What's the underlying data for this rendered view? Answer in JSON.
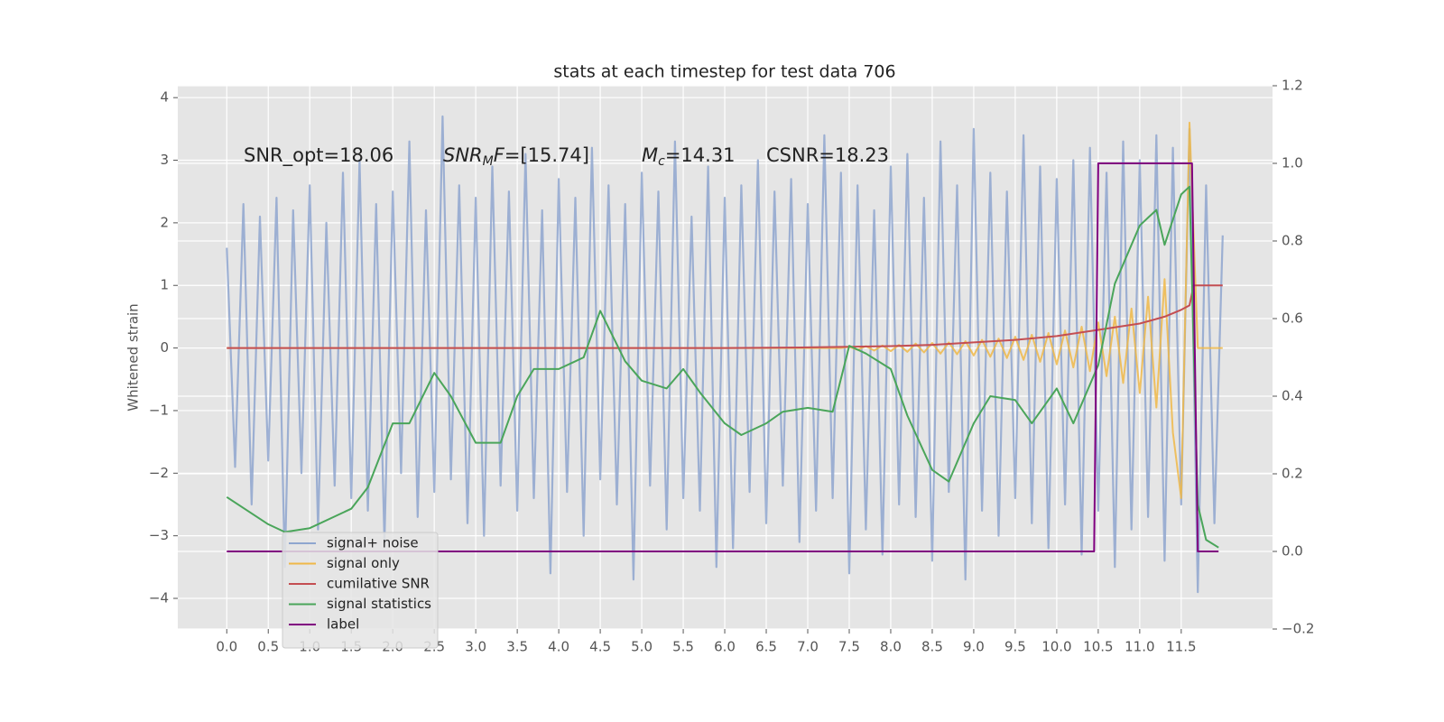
{
  "chart_data": {
    "type": "line",
    "title": "stats at each timestep for test data 706",
    "ylabel": "Whitened strain",
    "annotations": [
      {
        "text": "SNR_opt=18.06"
      },
      {
        "text": "SNR",
        "sub": "M",
        "italic": "F",
        "rest": "=[15.74]",
        "math": true
      },
      {
        "text": "M",
        "sub": "c",
        "rest": "=14.31",
        "math": true
      },
      {
        "text": "CSNR=18.23"
      }
    ],
    "xlim": [
      -0.59,
      12.6
    ],
    "xticks": [
      {
        "value": 0,
        "label": "0.0"
      },
      0.5,
      {
        "value": 1,
        "label": "1.0"
      },
      1.5,
      {
        "value": 2,
        "label": "2.0"
      },
      2.5,
      {
        "value": 3,
        "label": "3.0"
      },
      3.5,
      {
        "value": 4,
        "label": "4.0"
      },
      4.5,
      {
        "value": 5,
        "label": "5.0"
      },
      5.5,
      {
        "value": 6,
        "label": "6.0"
      },
      6.5,
      {
        "value": 7,
        "label": "7.0"
      },
      7.5,
      {
        "value": 8,
        "label": "8.0"
      },
      8.5,
      {
        "value": 9,
        "label": "9.0"
      },
      9.5,
      {
        "value": 10,
        "label": "10.0"
      },
      10.5,
      {
        "value": 11,
        "label": "11.0"
      },
      11.5
    ],
    "ylim": [
      -4.49,
      4.19
    ],
    "yticks": [
      {
        "value": -4,
        "label": "−4"
      },
      {
        "value": -3,
        "label": "−3"
      },
      {
        "value": -2,
        "label": "−2"
      },
      {
        "value": -1,
        "label": "−1"
      },
      0,
      1,
      2,
      3,
      4
    ],
    "y2lim": [
      -0.2,
      1.2
    ],
    "y2ticks": [
      {
        "value": -0.2,
        "label": "−0.2"
      },
      {
        "value": 0,
        "label": "0.0"
      },
      0.2,
      0.4,
      0.6,
      0.8,
      {
        "value": 1,
        "label": "1.0"
      },
      1.2
    ],
    "grid": true,
    "legend": "lower left",
    "series": [
      {
        "name": "signal+ noise",
        "color": "#8fa6cf",
        "x": [
          0.0,
          0.1,
          0.2,
          0.3,
          0.4,
          0.5,
          0.6,
          0.7,
          0.8,
          0.9,
          1.0,
          1.1,
          1.2,
          1.3,
          1.4,
          1.5,
          1.6,
          1.7,
          1.8,
          1.9,
          2.0,
          2.1,
          2.2,
          2.3,
          2.4,
          2.5,
          2.6,
          2.7,
          2.8,
          2.9,
          3.0,
          3.1,
          3.2,
          3.3,
          3.4,
          3.5,
          3.6,
          3.7,
          3.8,
          3.9,
          4.0,
          4.1,
          4.2,
          4.3,
          4.4,
          4.5,
          4.6,
          4.7,
          4.8,
          4.9,
          5.0,
          5.1,
          5.2,
          5.3,
          5.4,
          5.5,
          5.6,
          5.7,
          5.8,
          5.9,
          6.0,
          6.1,
          6.2,
          6.3,
          6.4,
          6.5,
          6.6,
          6.7,
          6.8,
          6.9,
          7.0,
          7.1,
          7.2,
          7.3,
          7.4,
          7.5,
          7.6,
          7.7,
          7.8,
          7.9,
          8.0,
          8.1,
          8.2,
          8.3,
          8.4,
          8.5,
          8.6,
          8.7,
          8.8,
          8.9,
          9.0,
          9.1,
          9.2,
          9.3,
          9.4,
          9.5,
          9.6,
          9.7,
          9.8,
          9.9,
          10.0,
          10.1,
          10.2,
          10.3,
          10.4,
          10.5,
          10.6,
          10.7,
          10.8,
          10.9,
          11.0,
          11.1,
          11.2,
          11.3,
          11.4,
          11.5,
          11.6,
          11.7,
          11.8,
          11.9,
          12.0
        ],
        "values": [
          1.6,
          -1.9,
          2.3,
          -2.5,
          2.1,
          -1.8,
          2.4,
          -3.5,
          2.2,
          -2.0,
          2.6,
          -2.9,
          2.0,
          -2.2,
          2.8,
          -2.4,
          3.0,
          -2.6,
          2.3,
          -3.1,
          2.5,
          -2.0,
          3.3,
          -2.7,
          2.2,
          -2.3,
          3.7,
          -2.1,
          2.6,
          -2.8,
          2.4,
          -3.0,
          2.9,
          -2.2,
          2.5,
          -2.6,
          3.1,
          -2.4,
          2.2,
          -3.6,
          2.7,
          -2.3,
          2.4,
          -3.0,
          3.2,
          -2.1,
          2.6,
          -2.5,
          2.3,
          -3.7,
          2.8,
          -2.2,
          2.5,
          -2.9,
          3.3,
          -2.4,
          2.1,
          -2.6,
          2.9,
          -3.5,
          2.4,
          -3.2,
          2.6,
          -2.3,
          3.0,
          -2.8,
          2.5,
          -2.2,
          2.7,
          -3.1,
          2.3,
          -2.6,
          3.4,
          -2.4,
          2.8,
          -3.6,
          2.6,
          -2.9,
          2.2,
          -3.3,
          2.9,
          -2.5,
          3.1,
          -2.7,
          2.4,
          -3.4,
          3.3,
          -2.3,
          2.6,
          -3.7,
          3.5,
          -2.6,
          2.8,
          -3.0,
          2.5,
          -2.4,
          3.4,
          -2.8,
          2.9,
          -3.2,
          2.7,
          -2.5,
          3.0,
          -3.3,
          3.2,
          -2.6,
          2.8,
          -3.5,
          3.3,
          -2.9,
          3.0,
          -2.7,
          3.4,
          -3.4,
          3.2,
          -2.5,
          3.5,
          -3.9,
          2.6,
          -2.8,
          1.8
        ]
      },
      {
        "name": "signal only",
        "color": "#f0b848",
        "x": [
          0.0,
          0.1,
          0.2,
          0.3,
          0.4,
          0.5,
          0.6,
          0.7,
          0.8,
          0.9,
          1.0,
          1.1,
          1.2,
          1.3,
          1.4,
          1.5,
          1.6,
          1.7,
          1.8,
          1.9,
          2.0,
          2.1,
          2.2,
          2.3,
          2.4,
          2.5,
          2.6,
          2.7,
          2.8,
          2.9,
          3.0,
          3.1,
          3.2,
          3.3,
          3.4,
          3.5,
          3.6,
          3.7,
          3.8,
          3.9,
          4.0,
          4.1,
          4.2,
          4.3,
          4.4,
          4.5,
          4.6,
          4.7,
          4.8,
          4.9,
          5.0,
          5.1,
          5.2,
          5.3,
          5.4,
          5.5,
          5.6,
          5.7,
          5.8,
          5.9,
          6.0,
          6.1,
          6.2,
          6.3,
          6.4,
          6.5,
          6.6,
          6.7,
          6.8,
          6.9,
          7.0,
          7.1,
          7.2,
          7.3,
          7.4,
          7.5,
          7.6,
          7.7,
          7.8,
          7.9,
          8.0,
          8.1,
          8.2,
          8.3,
          8.4,
          8.5,
          8.6,
          8.7,
          8.8,
          8.9,
          9.0,
          9.1,
          9.2,
          9.3,
          9.4,
          9.5,
          9.6,
          9.7,
          9.8,
          9.9,
          10.0,
          10.1,
          10.2,
          10.3,
          10.4,
          10.5,
          10.6,
          10.7,
          10.8,
          10.9,
          11.0,
          11.1,
          11.2,
          11.3,
          11.4,
          11.5,
          11.6,
          11.7,
          11.8,
          11.9,
          12.0
        ],
        "values": [
          0,
          0,
          0,
          0,
          0,
          0,
          0,
          0,
          0,
          0,
          0,
          0,
          0,
          0,
          0,
          0,
          0,
          0,
          0,
          0,
          0,
          0,
          0,
          0,
          0,
          0,
          0,
          0,
          0,
          0,
          0,
          0,
          0,
          0,
          0,
          0,
          0,
          0,
          0,
          0,
          0,
          0,
          0,
          0,
          0,
          0,
          0,
          0,
          0,
          0,
          0,
          0,
          0,
          0,
          0,
          0,
          0,
          0,
          0,
          0,
          0,
          0,
          0,
          0,
          0,
          0,
          0,
          0,
          0,
          0,
          0,
          0,
          0,
          0,
          0,
          0.02,
          -0.03,
          0.03,
          -0.04,
          0.04,
          -0.05,
          0.05,
          -0.06,
          0.07,
          -0.07,
          0.08,
          -0.09,
          0.09,
          -0.1,
          0.11,
          -0.12,
          0.13,
          -0.14,
          0.15,
          -0.16,
          0.18,
          -0.19,
          0.21,
          -0.22,
          0.24,
          -0.26,
          0.28,
          -0.31,
          0.34,
          -0.37,
          0.41,
          -0.45,
          0.5,
          -0.56,
          0.63,
          -0.72,
          0.82,
          -0.95,
          1.1,
          -1.35,
          -2.4,
          3.6,
          0,
          0,
          0,
          0
        ]
      },
      {
        "name": "cumilative SNR",
        "color": "#c44e52",
        "x": [
          0,
          6,
          7,
          7.5,
          8,
          8.5,
          9,
          9.5,
          10,
          10.5,
          11,
          11.3,
          11.5,
          11.6,
          11.65,
          12.0
        ],
        "values": [
          0,
          0,
          0.01,
          0.02,
          0.03,
          0.05,
          0.09,
          0.13,
          0.19,
          0.29,
          0.39,
          0.5,
          0.61,
          0.68,
          1.0,
          1.0
        ]
      },
      {
        "name": "signal statistics",
        "color": "#4aa55a",
        "axis": "y2",
        "x": [
          0,
          0.5,
          0.7,
          1.0,
          1.5,
          1.7,
          2.0,
          2.2,
          2.5,
          2.7,
          3.0,
          3.3,
          3.5,
          3.7,
          4.0,
          4.3,
          4.5,
          4.8,
          5.0,
          5.3,
          5.5,
          5.7,
          6.0,
          6.2,
          6.5,
          6.7,
          7.0,
          7.3,
          7.5,
          7.7,
          8.0,
          8.2,
          8.5,
          8.7,
          9.0,
          9.2,
          9.5,
          9.7,
          10.0,
          10.2,
          10.5,
          10.7,
          11.0,
          11.2,
          11.3,
          11.5,
          11.6,
          11.7,
          11.8,
          11.95
        ],
        "values": [
          0.14,
          0.07,
          0.05,
          0.06,
          0.11,
          0.165,
          0.33,
          0.33,
          0.46,
          0.4,
          0.28,
          0.28,
          0.4,
          0.47,
          0.47,
          0.5,
          0.62,
          0.49,
          0.44,
          0.42,
          0.47,
          0.41,
          0.33,
          0.3,
          0.33,
          0.36,
          0.37,
          0.36,
          0.53,
          0.51,
          0.47,
          0.35,
          0.21,
          0.18,
          0.33,
          0.4,
          0.39,
          0.33,
          0.42,
          0.33,
          0.48,
          0.69,
          0.84,
          0.88,
          0.79,
          0.92,
          0.94,
          0.12,
          0.03,
          0.01
        ]
      },
      {
        "name": "label",
        "color": "#800080",
        "axis": "y2",
        "x": [
          0,
          10.45,
          10.5,
          11.63,
          11.7,
          11.95
        ],
        "values": [
          0,
          0,
          1,
          1,
          0,
          0
        ]
      }
    ]
  }
}
